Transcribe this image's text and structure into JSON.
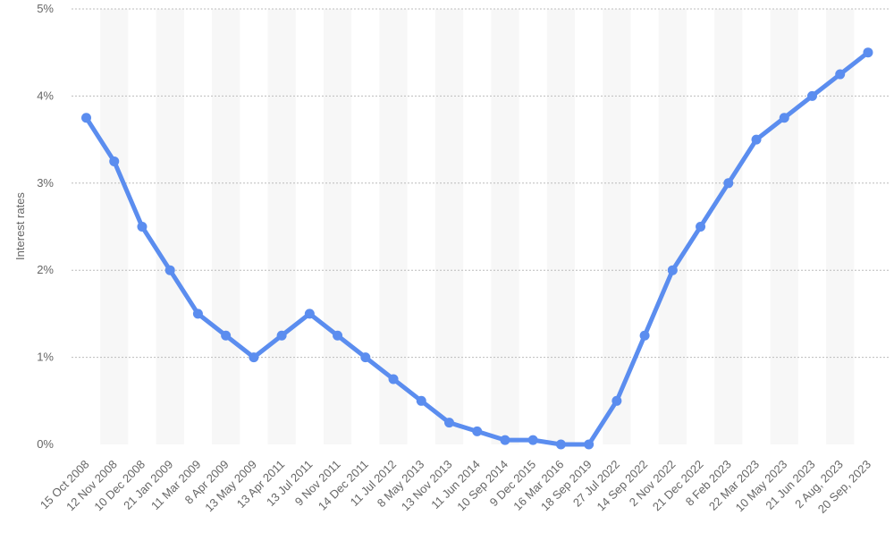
{
  "chart_data": {
    "type": "line",
    "title": "",
    "xlabel": "",
    "ylabel": "Interest rates",
    "ylim": [
      0,
      5
    ],
    "yticks": [
      "0%",
      "1%",
      "2%",
      "3%",
      "4%",
      "5%"
    ],
    "grid": true,
    "categories": [
      "15 Oct 2008",
      "12 Nov 2008",
      "10 Dec 2008",
      "21 Jan 2009",
      "11 Mar 2009",
      "8 Apr 2009",
      "13 May 2009",
      "13 Apr 2011",
      "13 Jul 2011",
      "9 Nov 2011",
      "14 Dec 2011",
      "11 Jul 2012",
      "8 May 2013",
      "13 Nov 2013",
      "11 Jun 2014",
      "10 Sep 2014",
      "9 Dec 2015",
      "16 Mar 2016",
      "18 Sep 2019",
      "27 Jul 2022",
      "14 Sep 2022",
      "2 Nov 2022",
      "21 Dec 2022",
      "8 Feb 2023",
      "22 Mar 2023",
      "10 May 2023",
      "21 Jun 2023",
      "2 Aug, 2023",
      "20 Sep, 2023"
    ],
    "series": [
      {
        "values": [
          3.75,
          3.25,
          2.5,
          2.0,
          1.5,
          1.25,
          1.0,
          1.25,
          1.5,
          1.25,
          1.0,
          0.75,
          0.5,
          0.25,
          0.15,
          0.05,
          0.05,
          0.0,
          0.0,
          0.5,
          1.25,
          2.0,
          2.5,
          3.0,
          3.5,
          3.75,
          4.0,
          4.25,
          4.5
        ],
        "color": "#5b8def"
      }
    ],
    "colors": {
      "line": "#5b8def",
      "band": "#f7f7f7",
      "grid": "#bcbcbc",
      "text": "#666666"
    }
  }
}
